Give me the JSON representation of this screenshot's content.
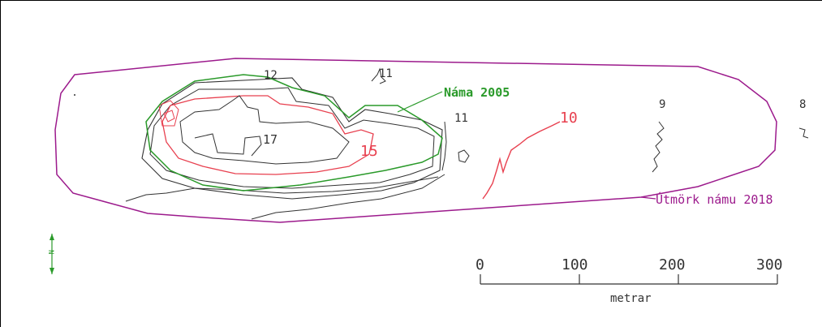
{
  "map": {
    "labels": {
      "pit_2005": "Náma 2005",
      "pit_boundary_2018": "Útmörk námu 2018",
      "north_arrow": "N"
    },
    "contours": [
      "12",
      "11",
      "11",
      "10",
      "9",
      "8",
      "17",
      "15"
    ],
    "scale_bar": {
      "ticks": [
        "0",
        "100",
        "200",
        "300"
      ],
      "unit": "metrar"
    },
    "colors": {
      "boundary_2018": "#9c1a8c",
      "pit_2005": "#2a9a2a",
      "contour_red": "#e8404f",
      "contour_gray": "#333333"
    }
  }
}
